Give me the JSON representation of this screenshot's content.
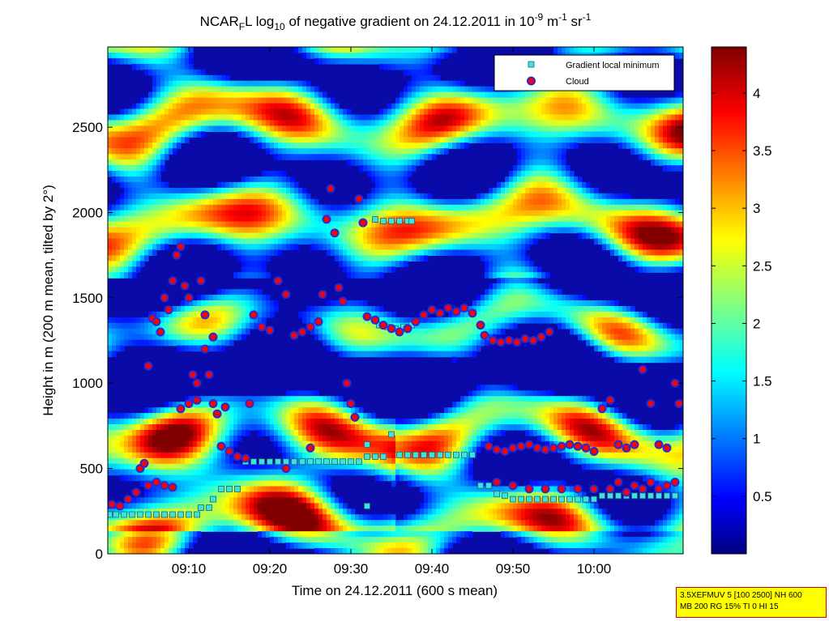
{
  "chart_data": {
    "type": "heatmap",
    "title": {
      "p1": "NCAR",
      "p1_sub": "F",
      "p2": "L log",
      "p2_sub": "10",
      "p3": " of negative gradient on 24.12.2011 in 10",
      "p3_sup": "-9",
      "p4": " m",
      "p4_sup": "-1",
      "p5": " sr",
      "p5_sup": "-1"
    },
    "xlabel": "Time on 24.12.2011 (600 s mean)",
    "ylabel": "Height in m (200 m mean, tilted by 2°)",
    "x_range_min": [
      0,
      71
    ],
    "x_ticks": [
      {
        "min": 10,
        "label": "09:10"
      },
      {
        "min": 20,
        "label": "09:20"
      },
      {
        "min": 30,
        "label": "09:30"
      },
      {
        "min": 40,
        "label": "09:40"
      },
      {
        "min": 50,
        "label": "09:50"
      },
      {
        "min": 60,
        "label": "10:00"
      }
    ],
    "ylim": [
      0,
      2970
    ],
    "y_ticks": [
      0,
      500,
      1000,
      1500,
      2000,
      2500
    ],
    "colorbar": {
      "range": [
        0,
        4.4
      ],
      "ticks": [
        "0.5",
        "1",
        "1.5",
        "2",
        "2.5",
        "3",
        "3.5",
        "4"
      ],
      "tick_values": [
        0.5,
        1,
        1.5,
        2,
        2.5,
        3,
        3.5,
        4
      ]
    },
    "legend": {
      "placement": "top-right",
      "entries": [
        "Gradient local minimum",
        "Cloud"
      ]
    },
    "series": [
      {
        "name": "Gradient local minimum",
        "points": [
          [
            0.2,
            230
          ],
          [
            1,
            230
          ],
          [
            2,
            230
          ],
          [
            3,
            230
          ],
          [
            4,
            230
          ],
          [
            5,
            230
          ],
          [
            6,
            230
          ],
          [
            7,
            230
          ],
          [
            8,
            230
          ],
          [
            9,
            230
          ],
          [
            10,
            230
          ],
          [
            11,
            230
          ],
          [
            11.5,
            270
          ],
          [
            12.5,
            270
          ],
          [
            13,
            320
          ],
          [
            14,
            380
          ],
          [
            15,
            380
          ],
          [
            16,
            380
          ],
          [
            17,
            540
          ],
          [
            18,
            540
          ],
          [
            19,
            540
          ],
          [
            20,
            540
          ],
          [
            21,
            540
          ],
          [
            22,
            540
          ],
          [
            23,
            540
          ],
          [
            24,
            540
          ],
          [
            25,
            540
          ],
          [
            26,
            540
          ],
          [
            27,
            540
          ],
          [
            28,
            540
          ],
          [
            29,
            540
          ],
          [
            30,
            540
          ],
          [
            31,
            540
          ],
          [
            32,
            640
          ],
          [
            32,
            570
          ],
          [
            33,
            570
          ],
          [
            34,
            570
          ],
          [
            35,
            700
          ],
          [
            36,
            580
          ],
          [
            37,
            580
          ],
          [
            38,
            580
          ],
          [
            39,
            580
          ],
          [
            40,
            580
          ],
          [
            41,
            580
          ],
          [
            42,
            580
          ],
          [
            43,
            580
          ],
          [
            44,
            580
          ],
          [
            45,
            580
          ],
          [
            46,
            400
          ],
          [
            47,
            400
          ],
          [
            48,
            350
          ],
          [
            49,
            340
          ],
          [
            50,
            320
          ],
          [
            51,
            320
          ],
          [
            52,
            320
          ],
          [
            53,
            320
          ],
          [
            54,
            320
          ],
          [
            55,
            320
          ],
          [
            56,
            320
          ],
          [
            57,
            320
          ],
          [
            58,
            320
          ],
          [
            59,
            320
          ],
          [
            60,
            320
          ],
          [
            61,
            340
          ],
          [
            62,
            340
          ],
          [
            63,
            340
          ],
          [
            64,
            340
          ],
          [
            65,
            340
          ],
          [
            66,
            340
          ],
          [
            67,
            340
          ],
          [
            68,
            340
          ],
          [
            69,
            340
          ],
          [
            70,
            340
          ],
          [
            33,
            1960
          ],
          [
            34,
            1950
          ],
          [
            35,
            1950
          ],
          [
            36,
            1950
          ],
          [
            37,
            1950
          ],
          [
            37.5,
            1950
          ],
          [
            33.5,
            1340
          ],
          [
            34.5,
            1330
          ],
          [
            35.5,
            1320
          ],
          [
            36.5,
            1330
          ],
          [
            37.5,
            1340
          ],
          [
            32,
            280
          ]
        ]
      },
      {
        "name": "Cloud",
        "points": [
          [
            0.5,
            290
          ],
          [
            1.5,
            280
          ],
          [
            2.5,
            320
          ],
          [
            3.5,
            360
          ],
          [
            4,
            500
          ],
          [
            4.5,
            530
          ],
          [
            5,
            1100
          ],
          [
            5.5,
            1380
          ],
          [
            6,
            1360
          ],
          [
            6.5,
            1300
          ],
          [
            7,
            1500
          ],
          [
            7.5,
            1430
          ],
          [
            8,
            1600
          ],
          [
            8.5,
            1750
          ],
          [
            9,
            1800
          ],
          [
            9.5,
            1570
          ],
          [
            10,
            1500
          ],
          [
            10.5,
            1050
          ],
          [
            11,
            1000
          ],
          [
            11.5,
            1600
          ],
          [
            12,
            1200
          ],
          [
            12.5,
            1050
          ],
          [
            13,
            880
          ],
          [
            13.5,
            820
          ],
          [
            14,
            630
          ],
          [
            15,
            600
          ],
          [
            16,
            570
          ],
          [
            17,
            560
          ],
          [
            5,
            400
          ],
          [
            6,
            420
          ],
          [
            7,
            400
          ],
          [
            8,
            390
          ],
          [
            9,
            850
          ],
          [
            10,
            880
          ],
          [
            11,
            900
          ],
          [
            12,
            1400
          ],
          [
            13,
            1270
          ],
          [
            17.5,
            880
          ],
          [
            18,
            1400
          ],
          [
            19,
            1330
          ],
          [
            20,
            1310
          ],
          [
            21,
            1600
          ],
          [
            22,
            1520
          ],
          [
            23,
            1280
          ],
          [
            24,
            1300
          ],
          [
            25,
            1330
          ],
          [
            26,
            1360
          ],
          [
            26.5,
            1520
          ],
          [
            27,
            1960
          ],
          [
            27.5,
            2140
          ],
          [
            28,
            1880
          ],
          [
            28.5,
            1560
          ],
          [
            29,
            1480
          ],
          [
            29.5,
            1000
          ],
          [
            30,
            880
          ],
          [
            30.5,
            800
          ],
          [
            31,
            2080
          ],
          [
            31.5,
            1940
          ],
          [
            32,
            1390
          ],
          [
            33,
            1370
          ],
          [
            34,
            1340
          ],
          [
            35,
            1320
          ],
          [
            36,
            1300
          ],
          [
            37,
            1320
          ],
          [
            38,
            1360
          ],
          [
            39,
            1400
          ],
          [
            40,
            1430
          ],
          [
            41,
            1410
          ],
          [
            42,
            1440
          ],
          [
            43,
            1420
          ],
          [
            44,
            1440
          ],
          [
            45,
            1410
          ],
          [
            46,
            1340
          ],
          [
            46.5,
            1280
          ],
          [
            47.5,
            1250
          ],
          [
            48.5,
            1240
          ],
          [
            49.5,
            1250
          ],
          [
            50.5,
            1240
          ],
          [
            51.5,
            1260
          ],
          [
            52.5,
            1250
          ],
          [
            53.5,
            1270
          ],
          [
            54.5,
            1300
          ],
          [
            47,
            630
          ],
          [
            48,
            610
          ],
          [
            49,
            600
          ],
          [
            50,
            620
          ],
          [
            51,
            630
          ],
          [
            52,
            640
          ],
          [
            53,
            620
          ],
          [
            54,
            610
          ],
          [
            55,
            620
          ],
          [
            56,
            630
          ],
          [
            57,
            640
          ],
          [
            58,
            630
          ],
          [
            59,
            620
          ],
          [
            60,
            600
          ],
          [
            61,
            850
          ],
          [
            62,
            900
          ],
          [
            63,
            640
          ],
          [
            64,
            620
          ],
          [
            65,
            640
          ],
          [
            66,
            1080
          ],
          [
            67,
            880
          ],
          [
            68,
            640
          ],
          [
            69,
            620
          ],
          [
            70,
            1000
          ],
          [
            70.5,
            880
          ],
          [
            48,
            420
          ],
          [
            50,
            400
          ],
          [
            52,
            380
          ],
          [
            54,
            380
          ],
          [
            56,
            380
          ],
          [
            58,
            380
          ],
          [
            60,
            380
          ],
          [
            62,
            380
          ],
          [
            63,
            420
          ],
          [
            64,
            360
          ],
          [
            65,
            400
          ],
          [
            66,
            380
          ],
          [
            67,
            420
          ],
          [
            68,
            380
          ],
          [
            69,
            400
          ],
          [
            70,
            420
          ],
          [
            14.5,
            860
          ],
          [
            25,
            620
          ],
          [
            22,
            500
          ]
        ]
      }
    ]
  },
  "info_box": {
    "line1": "3.5XEFMUV 5 [100 2500] NH 600",
    "line2": "MB 200 RG 15% TI 0 HI 15"
  }
}
